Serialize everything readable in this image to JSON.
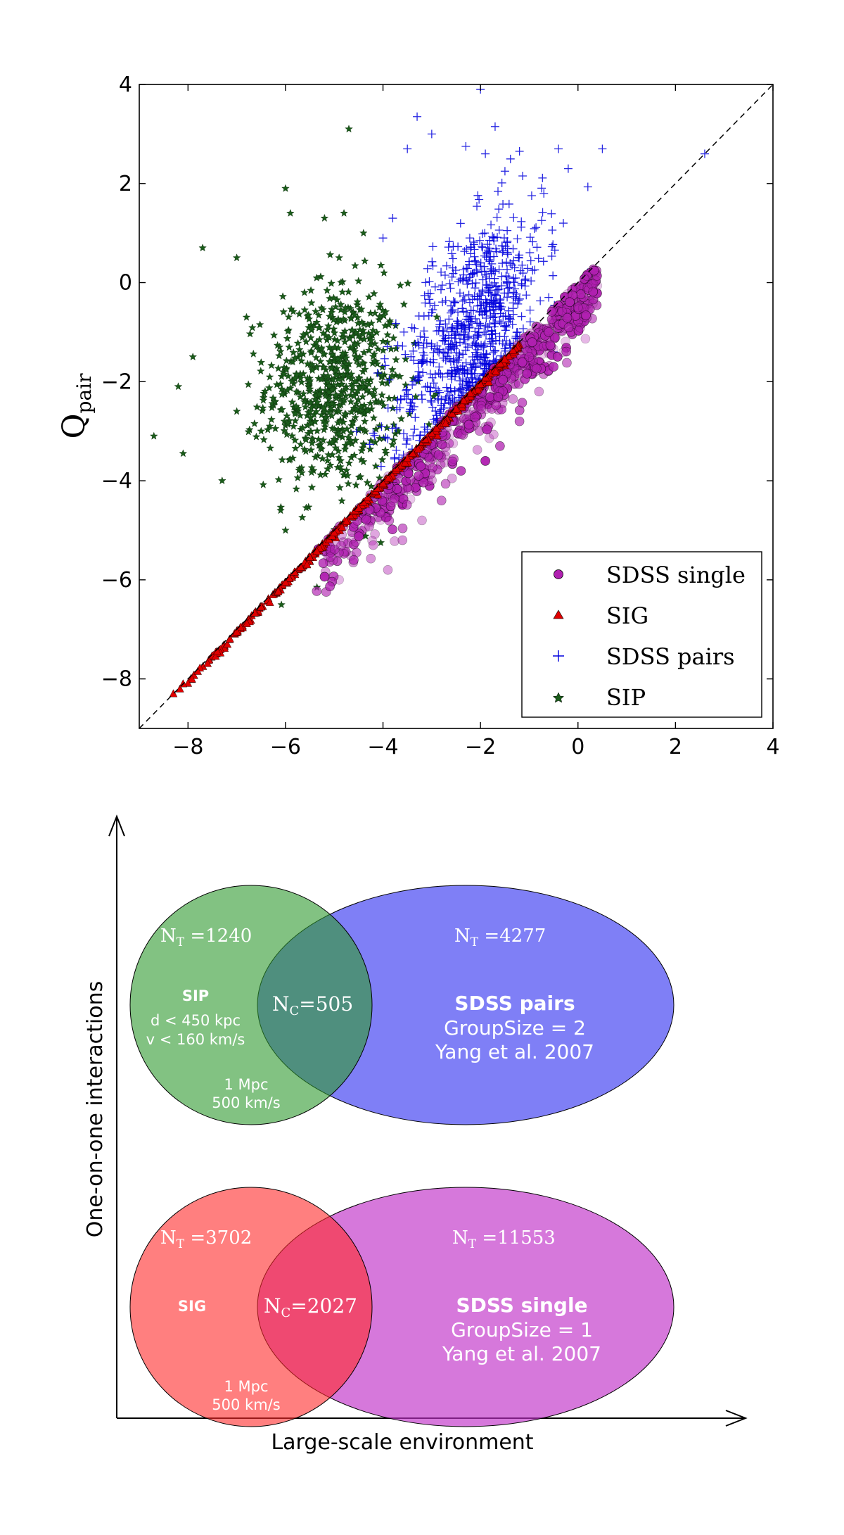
{
  "chart_data": [
    {
      "type": "scatter",
      "title": "",
      "xlabel": "",
      "ylabel": "Q",
      "ylabel_sub": "pair",
      "xlim": [
        -9,
        4
      ],
      "ylim": [
        -9,
        4
      ],
      "xticks": [
        -8,
        -6,
        -4,
        -2,
        0,
        2,
        4
      ],
      "yticks": [
        -8,
        -6,
        -4,
        -2,
        0,
        2,
        4
      ],
      "xtick_labels": [
        "−8",
        "−6",
        "−4",
        "−2",
        "0",
        "2",
        "4"
      ],
      "ytick_labels": [
        "−8",
        "−6",
        "−4",
        "−2",
        "0",
        "2",
        "4"
      ],
      "grid": false,
      "reference_line": "y = x (dashed)",
      "legend_position": "bottom-right",
      "legend": [
        "SDSS single",
        "SIG",
        "SDSS pairs",
        "SIP"
      ],
      "series": [
        {
          "name": "SDSS single",
          "marker": "circle",
          "color": "#b020b0",
          "cloud": {
            "x_range": [
              -5.4,
              0.4
            ],
            "offset_below_diagonal_mean": 0.45,
            "offset_sd": 0.35,
            "count": 650
          },
          "points": [
            {
              "x": -4.9,
              "y": -6.0
            },
            {
              "x": -4.2,
              "y": -5.3
            },
            {
              "x": -3.6,
              "y": -5.2
            },
            {
              "x": -3.2,
              "y": -4.8
            },
            {
              "x": -2.8,
              "y": -4.4
            },
            {
              "x": -2.4,
              "y": -3.8
            },
            {
              "x": -1.9,
              "y": -3.6
            },
            {
              "x": -1.6,
              "y": -3.3
            },
            {
              "x": -1.2,
              "y": -2.8
            },
            {
              "x": -0.8,
              "y": -2.2
            },
            {
              "x": -0.5,
              "y": -1.7
            },
            {
              "x": -0.3,
              "y": -1.4
            },
            {
              "x": 0.0,
              "y": -0.5
            },
            {
              "x": 0.2,
              "y": -0.1
            },
            {
              "x": -1.0,
              "y": -1.5
            },
            {
              "x": -0.6,
              "y": -1.0
            },
            {
              "x": -3.9,
              "y": -5.8
            },
            {
              "x": -4.6,
              "y": -5.6
            }
          ]
        },
        {
          "name": "SIG",
          "marker": "triangle",
          "color": "#e00000",
          "cloud": {
            "x_range": [
              -8.3,
              -1.2
            ],
            "offset_below_diagonal_mean": 0.05,
            "offset_sd": 0.05,
            "count": 520
          },
          "points": [
            {
              "x": -8.3,
              "y": -8.3
            },
            {
              "x": -8.1,
              "y": -8.1
            },
            {
              "x": -7.8,
              "y": -7.85
            },
            {
              "x": -7.4,
              "y": -7.45
            },
            {
              "x": -7.0,
              "y": -7.05
            },
            {
              "x": -6.5,
              "y": -6.55
            },
            {
              "x": -6.0,
              "y": -6.05
            },
            {
              "x": -5.5,
              "y": -5.55
            },
            {
              "x": -5.0,
              "y": -5.05
            },
            {
              "x": -4.5,
              "y": -4.55
            },
            {
              "x": -4.0,
              "y": -4.05
            },
            {
              "x": -3.5,
              "y": -3.55
            },
            {
              "x": -3.0,
              "y": -3.05
            },
            {
              "x": -2.5,
              "y": -2.55
            },
            {
              "x": -2.0,
              "y": -2.05
            },
            {
              "x": -1.5,
              "y": -1.55
            }
          ]
        },
        {
          "name": "SDSS pairs",
          "marker": "plus",
          "color": "#0000dd",
          "cloud": {
            "x_center": -2.2,
            "x_sd": 0.75,
            "offset_above_diagonal_mean": 1.3,
            "offset_sd": 1.0,
            "count": 750
          },
          "points": [
            {
              "x": -3.3,
              "y": 3.35
            },
            {
              "x": -2.0,
              "y": 3.9
            },
            {
              "x": -1.7,
              "y": 3.15
            },
            {
              "x": -3.0,
              "y": 3.0
            },
            {
              "x": -2.3,
              "y": 2.75
            },
            {
              "x": -1.9,
              "y": 2.6
            },
            {
              "x": -1.2,
              "y": 2.65
            },
            {
              "x": -0.4,
              "y": 2.7
            },
            {
              "x": 0.5,
              "y": 2.7
            },
            {
              "x": -3.5,
              "y": 2.7
            },
            {
              "x": -0.2,
              "y": 2.3
            },
            {
              "x": -0.7,
              "y": 1.8
            },
            {
              "x": -0.3,
              "y": 1.2
            },
            {
              "x": -0.6,
              "y": -0.3
            },
            {
              "x": 0.2,
              "y": 0.2
            },
            {
              "x": -0.5,
              "y": -1.4
            },
            {
              "x": -1.3,
              "y": 0.3
            },
            {
              "x": -3.8,
              "y": 1.3
            },
            {
              "x": -4.0,
              "y": 0.9
            },
            {
              "x": 2.6,
              "y": 2.6
            }
          ]
        },
        {
          "name": "SIP",
          "marker": "star",
          "color": "#1a5c1a",
          "cloud": {
            "x_center": -5.0,
            "x_sd": 0.7,
            "y_center": -2.1,
            "y_sd": 1.05,
            "count": 700
          },
          "points": [
            {
              "x": -4.7,
              "y": 3.1
            },
            {
              "x": -5.9,
              "y": 1.4
            },
            {
              "x": -6.0,
              "y": 1.9
            },
            {
              "x": -7.7,
              "y": 0.7
            },
            {
              "x": -7.0,
              "y": 0.5
            },
            {
              "x": -6.8,
              "y": -0.7
            },
            {
              "x": -7.9,
              "y": -1.5
            },
            {
              "x": -8.2,
              "y": -2.1
            },
            {
              "x": -8.7,
              "y": -3.1
            },
            {
              "x": -8.1,
              "y": -3.45
            },
            {
              "x": -7.0,
              "y": -2.6
            },
            {
              "x": -7.3,
              "y": -4.0
            },
            {
              "x": -6.1,
              "y": -4.6
            },
            {
              "x": -6.0,
              "y": -5.0
            },
            {
              "x": -4.8,
              "y": 1.4
            },
            {
              "x": -4.4,
              "y": 1.0
            },
            {
              "x": -5.2,
              "y": 1.3
            },
            {
              "x": -4.9,
              "y": 0.5
            },
            {
              "x": -6.5,
              "y": -3.0
            }
          ]
        }
      ]
    },
    {
      "type": "diagram",
      "xlabel": "Large-scale environment",
      "ylabel": "One-on-one interactions",
      "groups": [
        {
          "left": {
            "name": "SIP",
            "color": "#2f9a2f",
            "nt": "N",
            "nt_sub": "T",
            "nt_value": " =1240",
            "criteria": [
              "d < 450 kpc",
              "v < 160 km/s"
            ],
            "limits": [
              "1 Mpc",
              "500 km/s"
            ]
          },
          "right": {
            "name": "SDSS pairs",
            "color": "#0000ee",
            "nt": "N",
            "nt_sub": "T",
            "nt_value": " =4277",
            "lines": [
              "GroupSize = 2",
              "Yang et al. 2007"
            ]
          },
          "overlap": {
            "nc": "N",
            "nc_sub": "C",
            "nc_value": "=505",
            "color": "#2f6f78"
          }
        },
        {
          "left": {
            "name": "SIG",
            "color": "#ff2a2a",
            "nt": "N",
            "nt_sub": "T",
            "nt_value": " =3702",
            "criteria": [],
            "limits": [
              "1 Mpc",
              "500 km/s"
            ]
          },
          "right": {
            "name": "SDSS single",
            "color": "#c030c8",
            "nt": "N",
            "nt_sub": "T",
            "nt_value": " =11553",
            "lines": [
              "GroupSize = 1",
              "Yang et al. 2007"
            ]
          },
          "overlap": {
            "nc": "N",
            "nc_sub": "C",
            "nc_value": "=2027",
            "color": "#e83a6a"
          }
        }
      ]
    }
  ]
}
